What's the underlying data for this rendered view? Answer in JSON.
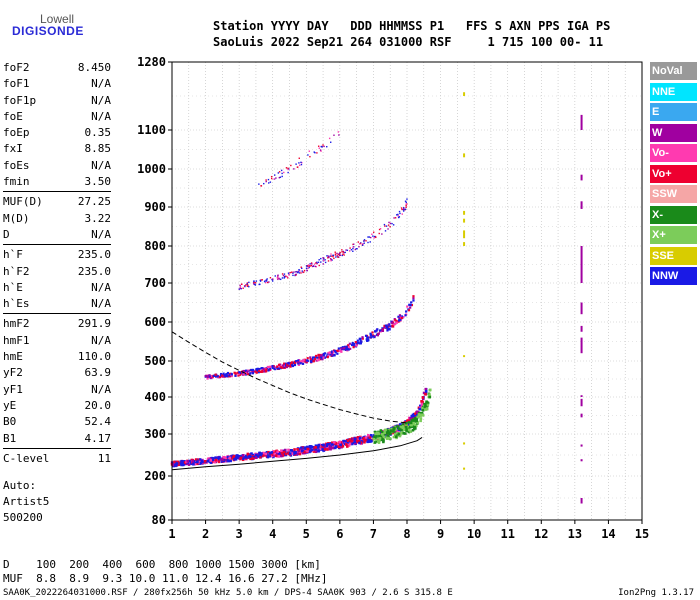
{
  "logo": {
    "line1": "Lowell",
    "line2": "DIGISONDE"
  },
  "header": {
    "line1": "Station YYYY DAY   DDD HHMMSS P1   FFS S AXN PPS IGA PS",
    "line2": "SaoLuis 2022 Sep21 264 031000 RSF     1 715 100 00- 11"
  },
  "params": [
    {
      "name": "foF2",
      "value": "8.450"
    },
    {
      "name": "foF1",
      "value": "N/A"
    },
    {
      "name": "foF1p",
      "value": "N/A"
    },
    {
      "name": "foE",
      "value": "N/A"
    },
    {
      "name": "foEp",
      "value": "0.35"
    },
    {
      "name": "fxI",
      "value": "8.85"
    },
    {
      "name": "foEs",
      "value": "N/A"
    },
    {
      "name": "fmin",
      "value": "3.50"
    },
    {
      "name": "MUF(D)",
      "value": "27.25"
    },
    {
      "name": "M(D)",
      "value": "3.22"
    },
    {
      "name": "D",
      "value": "N/A"
    },
    {
      "name": "h`F",
      "value": "235.0"
    },
    {
      "name": "h`F2",
      "value": "235.0"
    },
    {
      "name": "h`E",
      "value": "N/A"
    },
    {
      "name": "h`Es",
      "value": "N/A"
    },
    {
      "name": "hmF2",
      "value": "291.9"
    },
    {
      "name": "hmF1",
      "value": "N/A"
    },
    {
      "name": "hmE",
      "value": "110.0"
    },
    {
      "name": "yF2",
      "value": "63.9"
    },
    {
      "name": "yF1",
      "value": "N/A"
    },
    {
      "name": "yE",
      "value": "20.0"
    },
    {
      "name": "B0",
      "value": "52.4"
    },
    {
      "name": "B1",
      "value": "4.17"
    },
    {
      "name": "C-level",
      "value": "11"
    }
  ],
  "auto": {
    "line1": "Auto:",
    "line2": "Artist5",
    "line3": "500200"
  },
  "legend": [
    {
      "label": "NoVal",
      "color": "#999999"
    },
    {
      "label": "NNE",
      "color": "#00e5ff"
    },
    {
      "label": "E",
      "color": "#3aa8f0"
    },
    {
      "label": "W",
      "color": "#a000a0"
    },
    {
      "label": "Vo-",
      "color": "#ff3ab0"
    },
    {
      "label": "Vo+",
      "color": "#ee0030"
    },
    {
      "label": "SSW",
      "color": "#f5a6a6"
    },
    {
      "label": "X-",
      "color": "#1a8a1a"
    },
    {
      "label": "X+",
      "color": "#7ccc5a"
    },
    {
      "label": "SSE",
      "color": "#d8cc00"
    },
    {
      "label": "NNW",
      "color": "#1a1ae6"
    }
  ],
  "muf_table": {
    "row1": "D    100  200  400  600  800 1000 1500 3000 [km]",
    "row2": "MUF  8.8  8.9  9.3 10.0 11.0 12.4 16.6 27.2 [MHz]"
  },
  "footer": {
    "left": "SAA0K_2022264031000.RSF / 280fx256h 50 kHz 5.0 km / DPS-4 SAA0K 903 / 2.6 S 315.8 E",
    "right": "Ion2Png 1.3.17"
  },
  "chart_data": {
    "type": "scatter",
    "xlim": [
      1,
      15
    ],
    "ylim": [
      80,
      1280
    ],
    "x_ticks": [
      1,
      2,
      3,
      4,
      5,
      6,
      7,
      8,
      9,
      10,
      11,
      12,
      13,
      14,
      15
    ],
    "y_ticks": [
      80,
      200,
      300,
      400,
      500,
      600,
      700,
      800,
      900,
      1000,
      1100,
      1280
    ],
    "grid": true,
    "legend_position": "right",
    "traces": [
      {
        "name": "F-layer trace 1st hop",
        "x": [
          1.0,
          1.5,
          2.0,
          2.5,
          3.0,
          3.5,
          4.0,
          4.5,
          5.0,
          5.5,
          6.0,
          6.5,
          7.0,
          7.3,
          7.6,
          7.9,
          8.1,
          8.3,
          8.4,
          8.5,
          8.6
        ],
        "y": [
          228,
          232,
          236,
          240,
          244,
          248,
          252,
          256,
          262,
          268,
          275,
          283,
          292,
          300,
          310,
          322,
          336,
          352,
          372,
          400,
          430
        ],
        "width": 4
      },
      {
        "name": "F-layer trace 2nd hop",
        "x": [
          2.0,
          2.5,
          3.0,
          3.5,
          4.0,
          4.5,
          5.0,
          5.5,
          6.0,
          6.5,
          7.0,
          7.5,
          7.8,
          8.0,
          8.2
        ],
        "y": [
          455,
          460,
          465,
          472,
          480,
          490,
          500,
          512,
          526,
          545,
          568,
          590,
          610,
          630,
          660
        ],
        "width": 3
      },
      {
        "name": "F-layer trace 3rd hop",
        "x": [
          3.0,
          3.5,
          4.0,
          4.5,
          5.0,
          5.5,
          6.0,
          6.5,
          7.0,
          7.5,
          7.8,
          8.0
        ],
        "y": [
          690,
          700,
          710,
          722,
          740,
          760,
          780,
          800,
          825,
          855,
          880,
          910
        ],
        "width": 2
      },
      {
        "name": "F-layer trace 4th hop",
        "x": [
          3.5,
          4.0,
          4.5,
          5.0,
          5.5,
          6.0
        ],
        "y": [
          950,
          975,
          1000,
          1030,
          1060,
          1090
        ],
        "width": 1
      }
    ],
    "x_trace": {
      "x": [
        7.0,
        7.5,
        7.9,
        8.2,
        8.4,
        8.6,
        8.7
      ],
      "y": [
        290,
        300,
        312,
        325,
        345,
        380,
        420
      ]
    },
    "profile_curve": {
      "x": [
        1.0,
        2.0,
        3.0,
        4.0,
        5.0,
        6.0,
        7.0,
        7.8,
        8.3,
        8.45
      ],
      "y": [
        215,
        222,
        228,
        235,
        242,
        250,
        260,
        272,
        284,
        292
      ]
    },
    "muf_curve": {
      "x": [
        1.0,
        1.5,
        2.0,
        2.5,
        3.0,
        3.5,
        4.0,
        4.5,
        5.0,
        5.5,
        6.0,
        6.5,
        7.0,
        7.5,
        8.0
      ],
      "y": [
        575,
        548,
        522,
        497,
        474,
        452,
        432,
        412,
        395,
        380,
        366,
        354,
        343,
        335,
        330
      ]
    },
    "vertical_lines": [
      {
        "x": 9.7,
        "segments": [
          [
            1190,
            1200
          ],
          [
            1030,
            1040
          ],
          [
            880,
            890
          ],
          [
            860,
            870
          ],
          [
            820,
            840
          ],
          [
            800,
            810
          ],
          [
            510,
            515
          ],
          [
            275,
            280
          ],
          [
            215,
            220
          ]
        ],
        "color": "#d8cc00"
      },
      {
        "x": 13.2,
        "segments": [
          [
            1100,
            1140
          ],
          [
            970,
            985
          ],
          [
            895,
            915
          ],
          [
            700,
            800
          ],
          [
            620,
            650
          ],
          [
            575,
            590
          ],
          [
            520,
            560
          ],
          [
            400,
            405
          ],
          [
            375,
            395
          ],
          [
            345,
            355
          ],
          [
            270,
            275
          ],
          [
            235,
            240
          ],
          [
            125,
            140
          ]
        ],
        "color": "#a000a0"
      }
    ]
  }
}
